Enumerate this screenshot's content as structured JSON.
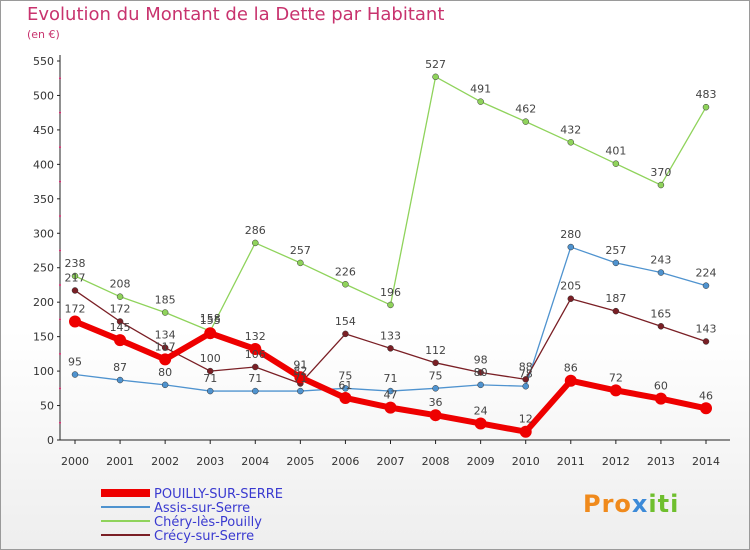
{
  "chart_data": {
    "type": "line",
    "title": "Evolution du Montant de la Dette par Habitant",
    "subtitle": "(en €)",
    "xlabel": "",
    "ylabel": "",
    "ylim": [
      0,
      550
    ],
    "yticks": [
      0,
      50,
      100,
      150,
      200,
      250,
      300,
      350,
      400,
      450,
      500,
      550
    ],
    "x": [
      2000,
      2001,
      2002,
      2003,
      2004,
      2005,
      2006,
      2007,
      2008,
      2009,
      2010,
      2011,
      2012,
      2013,
      2014
    ],
    "grid": false,
    "legend_position": "bottom-left",
    "series": [
      {
        "name": "Chéry-lès-Pouilly",
        "color": "#8fd35b",
        "values": [
          238,
          208,
          185,
          158,
          286,
          257,
          226,
          196,
          527,
          491,
          462,
          432,
          401,
          370,
          483
        ]
      },
      {
        "name": "Assis-sur-Serre",
        "color": "#4f93cf",
        "values": [
          95,
          87,
          80,
          71,
          71,
          71,
          75,
          71,
          75,
          80,
          78,
          280,
          257,
          243,
          224
        ]
      },
      {
        "name": "Crécy-sur-Serre",
        "color": "#7a1f25",
        "values": [
          217,
          172,
          134,
          100,
          106,
          82,
          154,
          133,
          112,
          98,
          88,
          205,
          187,
          165,
          143
        ]
      },
      {
        "name": "POUILLY-SUR-SERRE",
        "color": "#ee0000",
        "values": [
          172,
          145,
          117,
          155,
          132,
          91,
          61,
          47,
          36,
          24,
          12,
          86,
          72,
          60,
          46
        ]
      }
    ],
    "legend": [
      "POUILLY-SUR-SERRE",
      "Assis-sur-Serre",
      "Chéry-lès-Pouilly",
      "Crécy-sur-Serre"
    ]
  },
  "logo_text": "Proxiti"
}
